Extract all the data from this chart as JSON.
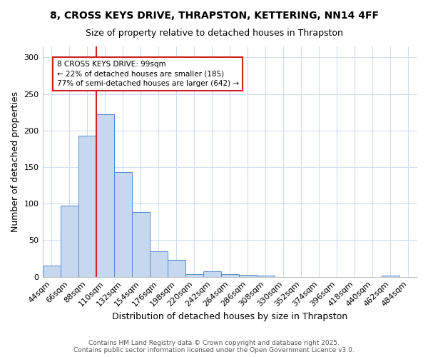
{
  "title_line1": "8, CROSS KEYS DRIVE, THRAPSTON, KETTERING, NN14 4FF",
  "title_line2": "Size of property relative to detached houses in Thrapston",
  "xlabel": "Distribution of detached houses by size in Thrapston",
  "ylabel": "Number of detached properties",
  "bar_labels": [
    "44sqm",
    "66sqm",
    "88sqm",
    "110sqm",
    "132sqm",
    "154sqm",
    "176sqm",
    "198sqm",
    "220sqm",
    "242sqm",
    "264sqm",
    "286sqm",
    "308sqm",
    "330sqm",
    "352sqm",
    "374sqm",
    "396sqm",
    "418sqm",
    "440sqm",
    "462sqm",
    "484sqm"
  ],
  "bar_values": [
    15,
    97,
    193,
    222,
    143,
    88,
    35,
    23,
    4,
    7,
    4,
    3,
    2,
    0,
    0,
    0,
    0,
    0,
    0,
    2,
    0
  ],
  "bar_color": "#c5d8f0",
  "bar_edge_color": "#5588cc",
  "background_color": "#ffffff",
  "grid_color": "#d0ddf0",
  "vline_color": "#cc2222",
  "annotation_text": "8 CROSS KEYS DRIVE: 99sqm\n← 22% of detached houses are smaller (185)\n77% of semi-detached houses are larger (642) →",
  "annotation_box_color": "#cc2222",
  "ylim": [
    0,
    315
  ],
  "yticks": [
    0,
    50,
    100,
    150,
    200,
    250,
    300
  ],
  "footer_line1": "Contains HM Land Registry data © Crown copyright and database right 2025.",
  "footer_line2": "Contains public sector information licensed under the Open Government Licence v3.0.",
  "title_fontsize": 10,
  "subtitle_fontsize": 9,
  "axis_label_fontsize": 9,
  "tick_fontsize": 8,
  "footer_fontsize": 6.5
}
